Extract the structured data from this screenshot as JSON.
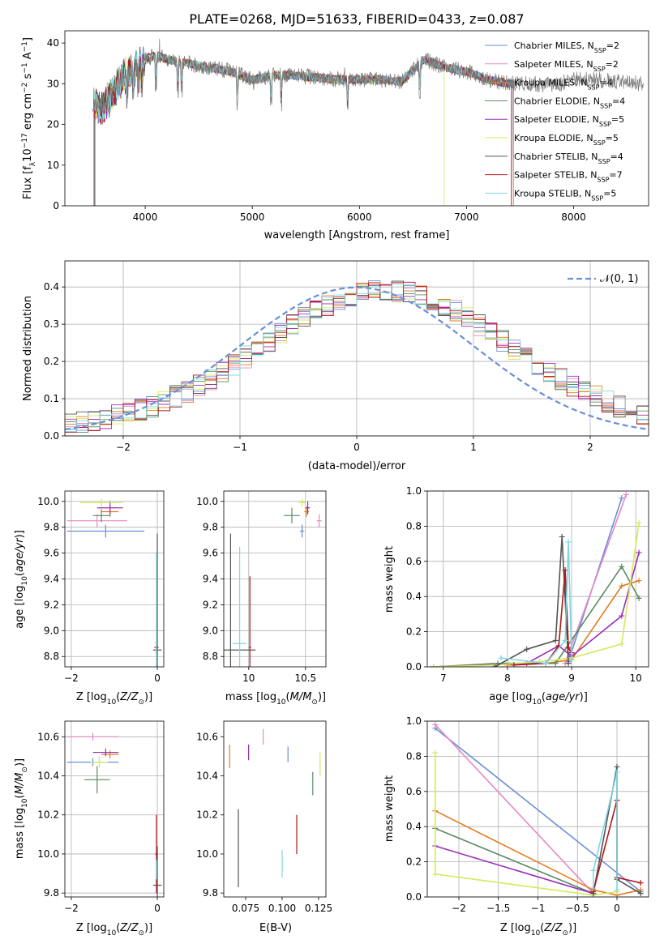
{
  "figure_title": "PLATE=0268, MJD=51633, FIBERID=0433, z=0.087",
  "colors": {
    "Chabrier MILES": "#6a8fd8",
    "Salpeter MILES": "#e888c4",
    "Kroupa MILES": "#e07c22",
    "Chabrier ELODIE": "#5a8a62",
    "Salpeter ELODIE": "#9b30b8",
    "Kroupa ELODIE": "#d4ea5a",
    "Chabrier STELIB": "#555555",
    "Salpeter STELIB": "#b01818",
    "Kroupa STELIB": "#7fd8e0"
  },
  "legend": [
    {
      "label": "Chabrier MILES, N",
      "sub": "SSP",
      "suffix": "=2"
    },
    {
      "label": "Salpeter MILES, N",
      "sub": "SSP",
      "suffix": "=2"
    },
    {
      "label": "Kroupa MILES, N",
      "sub": "SSP",
      "suffix": "=4"
    },
    {
      "label": "Chabrier ELODIE, N",
      "sub": "SSP",
      "suffix": "=4"
    },
    {
      "label": "Salpeter ELODIE, N",
      "sub": "SSP",
      "suffix": "=5"
    },
    {
      "label": "Kroupa ELODIE, N",
      "sub": "SSP",
      "suffix": "=5"
    },
    {
      "label": "Chabrier STELIB, N",
      "sub": "SSP",
      "suffix": "=4"
    },
    {
      "label": "Salpeter STELIB, N",
      "sub": "SSP",
      "suffix": "=7"
    },
    {
      "label": "Kroupa STELIB, N",
      "sub": "SSP",
      "suffix": "=5"
    }
  ],
  "chart_data": [
    {
      "type": "line",
      "panel": "spectrum",
      "xlabel": "wavelength [Angstrom, rest frame]",
      "ylabel": "Flux [f",
      "ylabel_parts": [
        "Flux [f",
        "λ",
        "10",
        "−17",
        " erg cm",
        "−2",
        " s",
        "−1",
        " A",
        "−1",
        "]"
      ],
      "xlim": [
        3250,
        8700
      ],
      "ylim": [
        0,
        43
      ],
      "xticks": [
        4000,
        5000,
        6000,
        7000,
        8000
      ],
      "yticks": [
        0,
        10,
        20,
        30,
        40
      ],
      "grid": false,
      "legend_position": "top-right",
      "continuum": {
        "x": [
          3500,
          3600,
          3700,
          3800,
          3900,
          4000,
          4100,
          4200,
          4400,
          4600,
          4800,
          5000,
          5200,
          5400,
          5600,
          5800,
          6000,
          6200,
          6400,
          6600,
          6800,
          7000,
          7200,
          7400,
          7600,
          7800,
          8000,
          8200,
          8400,
          8600
        ],
        "y": [
          25,
          24,
          28,
          32,
          34,
          36,
          37,
          36,
          35,
          34,
          33,
          31,
          32,
          32,
          31.5,
          31,
          31,
          31,
          30.5,
          36,
          34,
          33,
          31,
          30,
          30,
          29.5,
          31,
          31,
          30.5,
          30
        ]
      },
      "model_end_x": [
        3520,
        3520,
        3520,
        3520,
        3520,
        3520,
        3530,
        3520,
        3520
      ],
      "model_start_drop_x": [
        7440,
        7440,
        7420,
        7440,
        7440,
        6790,
        7440,
        7420,
        7440
      ]
    },
    {
      "type": "line",
      "panel": "residual-histogram",
      "xlabel": "(data-model)/error",
      "ylabel": "Normed distribution",
      "xlim": [
        -2.5,
        2.5
      ],
      "ylim": [
        0,
        0.47
      ],
      "xticks": [
        -2,
        -1,
        0,
        1,
        2
      ],
      "yticks": [
        0.0,
        0.1,
        0.2,
        0.3,
        0.4
      ],
      "grid": true,
      "legend_position": "top-right",
      "reference_label": "𝒩(0, 1)",
      "reference_color": "#6a8fd8",
      "bin_width": 0.1
    },
    {
      "type": "scatter",
      "panel": "age-vs-Z",
      "xlabel": "Z [log10(Z/Z⊙)]",
      "ylabel": "age  [log10(age/yr)]",
      "xlim": [
        -2.15,
        0.15
      ],
      "ylim": [
        8.72,
        10.08
      ],
      "xticks": [
        -2,
        0
      ],
      "yticks": [
        8.8,
        9.0,
        9.2,
        9.4,
        9.6,
        9.8,
        10.0
      ],
      "grid": true,
      "points": [
        {
          "series": "Chabrier MILES",
          "x": -1.2,
          "y": 9.77,
          "xerr": 0.9,
          "yerr": 0.05
        },
        {
          "series": "Salpeter MILES",
          "x": -1.4,
          "y": 9.85,
          "xerr": 0.7,
          "yerr": 0.05
        },
        {
          "series": "Kroupa MILES",
          "x": -1.1,
          "y": 9.92,
          "xerr": 0.2,
          "yerr": 0.04
        },
        {
          "series": "Chabrier ELODIE",
          "x": -1.3,
          "y": 9.89,
          "xerr": 0.2,
          "yerr": 0.05
        },
        {
          "series": "Salpeter ELODIE",
          "x": -1.1,
          "y": 9.95,
          "xerr": 0.3,
          "yerr": 0.05
        },
        {
          "series": "Kroupa ELODIE",
          "x": -1.3,
          "y": 9.99,
          "xerr": 0.5,
          "yerr": 0.03
        },
        {
          "series": "Chabrier STELIB",
          "x": 0.0,
          "y": 8.85,
          "xerr": 0.1,
          "yerr": 0.9
        },
        {
          "series": "Salpeter STELIB",
          "x": -0.02,
          "y": 8.87,
          "xerr": 0.05,
          "yerr": 0.05
        },
        {
          "series": "Kroupa STELIB",
          "x": -0.02,
          "y": 8.9,
          "xerr": 0.02,
          "yerr": 0.7
        }
      ]
    },
    {
      "type": "scatter",
      "panel": "age-vs-mass",
      "xlabel": "mass [log10(M/M⊙)]",
      "ylabel": "",
      "xlim": [
        9.78,
        10.68
      ],
      "ylim": [
        8.72,
        10.08
      ],
      "xticks": [
        10.0,
        10.5
      ],
      "yticks": [
        8.8,
        9.0,
        9.2,
        9.4,
        9.6,
        9.8,
        10.0
      ],
      "grid": true,
      "points": [
        {
          "series": "Chabrier MILES",
          "x": 10.47,
          "y": 9.77,
          "xerr": 0.02,
          "yerr": 0.05
        },
        {
          "series": "Salpeter MILES",
          "x": 10.62,
          "y": 9.85,
          "xerr": 0.02,
          "yerr": 0.05
        },
        {
          "series": "Kroupa MILES",
          "x": 10.51,
          "y": 9.92,
          "xerr": 0.02,
          "yerr": 0.04
        },
        {
          "series": "Chabrier ELODIE",
          "x": 10.38,
          "y": 9.89,
          "xerr": 0.07,
          "yerr": 0.06
        },
        {
          "series": "Salpeter ELODIE",
          "x": 10.52,
          "y": 9.95,
          "xerr": 0.02,
          "yerr": 0.05
        },
        {
          "series": "Kroupa ELODIE",
          "x": 10.47,
          "y": 9.99,
          "xerr": 0.03,
          "yerr": 0.03
        },
        {
          "series": "Chabrier STELIB",
          "x": 9.84,
          "y": 8.85,
          "xerr": 0.22,
          "yerr": 0.9
        },
        {
          "series": "Salpeter STELIB",
          "x": 10.01,
          "y": 8.87,
          "xerr": 0.01,
          "yerr": 0.55
        },
        {
          "series": "Kroupa STELIB",
          "x": 9.92,
          "y": 8.9,
          "xerr": 0.06,
          "yerr": 0.75
        }
      ]
    },
    {
      "type": "line",
      "panel": "mass-weight-vs-age",
      "xlabel": "age  [log10(age/yr)]",
      "ylabel": "mass weight",
      "xlim": [
        6.75,
        10.2
      ],
      "ylim": [
        0,
        1.0
      ],
      "xticks": [
        7,
        8,
        9,
        10
      ],
      "yticks": [
        0.0,
        0.2,
        0.4,
        0.6,
        0.8,
        1.0
      ],
      "grid": true,
      "series": [
        {
          "name": "Chabrier MILES",
          "x": [
            8.95,
            9.78
          ],
          "y": [
            0.03,
            0.96
          ]
        },
        {
          "name": "Salpeter MILES",
          "x": [
            8.9,
            9.85
          ],
          "y": [
            0.02,
            0.98
          ]
        },
        {
          "name": "Kroupa MILES",
          "x": [
            8.0,
            8.6,
            9.0,
            9.78,
            10.05
          ],
          "y": [
            0.01,
            0.02,
            0.04,
            0.46,
            0.49
          ]
        },
        {
          "name": "Chabrier ELODIE",
          "x": [
            6.85,
            7.85,
            8.75,
            9.78,
            10.05
          ],
          "y": [
            0.0,
            0.02,
            0.02,
            0.57,
            0.39
          ]
        },
        {
          "name": "Salpeter ELODIE",
          "x": [
            6.85,
            8.3,
            8.8,
            9.0,
            9.78,
            10.05
          ],
          "y": [
            0.0,
            0.02,
            0.12,
            0.06,
            0.29,
            0.65
          ]
        },
        {
          "name": "Kroupa ELODIE",
          "x": [
            6.85,
            7.8,
            8.5,
            9.0,
            9.78,
            10.05
          ],
          "y": [
            0.0,
            0.01,
            0.03,
            0.05,
            0.13,
            0.82
          ]
        },
        {
          "name": "Chabrier STELIB",
          "x": [
            7.8,
            8.3,
            8.75,
            8.85,
            8.95
          ],
          "y": [
            0.0,
            0.1,
            0.15,
            0.74,
            0.02
          ]
        },
        {
          "name": "Salpeter STELIB",
          "x": [
            8.1,
            8.6,
            8.8,
            8.9,
            8.95,
            9.0
          ],
          "y": [
            0.01,
            0.02,
            0.12,
            0.55,
            0.11,
            0.08
          ]
        },
        {
          "name": "Kroupa STELIB",
          "x": [
            7.9,
            8.6,
            8.9,
            8.95,
            9.0
          ],
          "y": [
            0.05,
            0.02,
            0.15,
            0.71,
            0.04
          ]
        }
      ]
    },
    {
      "type": "scatter",
      "panel": "mass-vs-Z",
      "xlabel": "Z [log10(Z/Z⊙)]",
      "ylabel": "mass [log10(M/M⊙)]",
      "xlim": [
        -2.15,
        0.15
      ],
      "ylim": [
        9.78,
        10.68
      ],
      "xticks": [
        -2,
        0
      ],
      "yticks": [
        9.8,
        10.0,
        10.2,
        10.4,
        10.6
      ],
      "grid": true,
      "points": [
        {
          "series": "Chabrier MILES",
          "x": -1.5,
          "y": 10.47,
          "xerr": 0.6,
          "yerr": 0.02
        },
        {
          "series": "Salpeter MILES",
          "x": -1.5,
          "y": 10.6,
          "xerr": 0.6,
          "yerr": 0.02
        },
        {
          "series": "Kroupa MILES",
          "x": -1.1,
          "y": 10.51,
          "xerr": 0.2,
          "yerr": 0.02
        },
        {
          "series": "Chabrier ELODIE",
          "x": -1.4,
          "y": 10.38,
          "xerr": 0.3,
          "yerr": 0.07
        },
        {
          "series": "Salpeter ELODIE",
          "x": -1.2,
          "y": 10.52,
          "xerr": 0.3,
          "yerr": 0.02
        },
        {
          "series": "Kroupa ELODIE",
          "x": -1.35,
          "y": 10.47,
          "xerr": 0.2,
          "yerr": 0.03
        },
        {
          "series": "Chabrier STELIB",
          "x": 0.0,
          "y": 9.84,
          "xerr": 0.1,
          "yerr": 0.2
        },
        {
          "series": "Salpeter STELIB",
          "x": -0.02,
          "y": 10.0,
          "xerr": 0.03,
          "yerr": 0.2
        },
        {
          "series": "Kroupa STELIB",
          "x": -0.02,
          "y": 9.92,
          "xerr": 0.02,
          "yerr": 0.05
        }
      ]
    },
    {
      "type": "scatter",
      "panel": "mass-vs-EBV",
      "xlabel": "E(B-V)",
      "ylabel": "",
      "xlim": [
        0.06,
        0.13
      ],
      "ylim": [
        9.78,
        10.68
      ],
      "xticks": [
        0.075,
        0.1,
        0.125
      ],
      "xticklabels": [
        "0.075",
        "0.100",
        "0.125"
      ],
      "yticks": [
        9.8,
        10.0,
        10.2,
        10.4,
        10.6
      ],
      "grid": false,
      "points": [
        {
          "series": "Chabrier MILES",
          "x": 0.104,
          "y": 10.51,
          "yerr": 0.04
        },
        {
          "series": "Salpeter MILES",
          "x": 0.087,
          "y": 10.6,
          "yerr": 0.04
        },
        {
          "series": "Kroupa MILES",
          "x": 0.064,
          "y": 10.5,
          "yerr": 0.06
        },
        {
          "series": "Chabrier ELODIE",
          "x": 0.121,
          "y": 10.36,
          "yerr": 0.06
        },
        {
          "series": "Salpeter ELODIE",
          "x": 0.077,
          "y": 10.52,
          "yerr": 0.04
        },
        {
          "series": "Kroupa ELODIE",
          "x": 0.126,
          "y": 10.46,
          "yerr": 0.06
        },
        {
          "series": "Chabrier STELIB",
          "x": 0.07,
          "y": 10.03,
          "yerr": 0.2
        },
        {
          "series": "Salpeter STELIB",
          "x": 0.11,
          "y": 10.1,
          "yerr": 0.1
        },
        {
          "series": "Kroupa STELIB",
          "x": 0.1,
          "y": 9.95,
          "yerr": 0.07
        }
      ]
    },
    {
      "type": "line",
      "panel": "mass-weight-vs-Z",
      "xlabel": "Z [log10(Z/Z⊙)]",
      "ylabel": "mass weight",
      "xlim": [
        -2.4,
        0.4
      ],
      "ylim": [
        0,
        1.0
      ],
      "xticks": [
        -2.0,
        -1.5,
        -1.0,
        -0.5,
        0.0
      ],
      "yticks": [
        0.0,
        0.2,
        0.4,
        0.6,
        0.8,
        1.0
      ],
      "grid": true,
      "series": [
        {
          "name": "Chabrier MILES",
          "x": [
            -2.3,
            0.3
          ],
          "y": [
            0.96,
            0.03
          ]
        },
        {
          "name": "Salpeter MILES",
          "x": [
            -2.3,
            -0.3
          ],
          "y": [
            0.98,
            0.02
          ]
        },
        {
          "name": "Kroupa MILES",
          "x": [
            -2.3,
            -0.3,
            0.0,
            0.3
          ],
          "y": [
            0.49,
            0.04,
            0.01,
            0.04
          ]
        },
        {
          "name": "Chabrier ELODIE",
          "x": [
            -2.3,
            -0.3
          ],
          "y": [
            0.39,
            0.02
          ]
        },
        {
          "name": "Salpeter ELODIE",
          "x": [
            -2.3,
            -0.3
          ],
          "y": [
            0.29,
            0.02
          ]
        },
        {
          "name": "Kroupa ELODIE",
          "x": [
            -2.3,
            -2.3,
            -0.3,
            0.0
          ],
          "y": [
            0.82,
            0.13,
            0.01,
            0.03
          ]
        },
        {
          "name": "Chabrier STELIB",
          "x": [
            -0.3,
            0.0,
            0.0,
            0.3
          ],
          "y": [
            0.02,
            0.74,
            0.1,
            0.02
          ]
        },
        {
          "name": "Salpeter STELIB",
          "x": [
            -0.3,
            0.0,
            0.0,
            0.3
          ],
          "y": [
            0.03,
            0.55,
            0.11,
            0.08
          ]
        },
        {
          "name": "Kroupa STELIB",
          "x": [
            -0.3,
            -0.3,
            0.0,
            0.0
          ],
          "y": [
            0.05,
            0.15,
            0.71,
            0.04
          ]
        }
      ]
    }
  ]
}
